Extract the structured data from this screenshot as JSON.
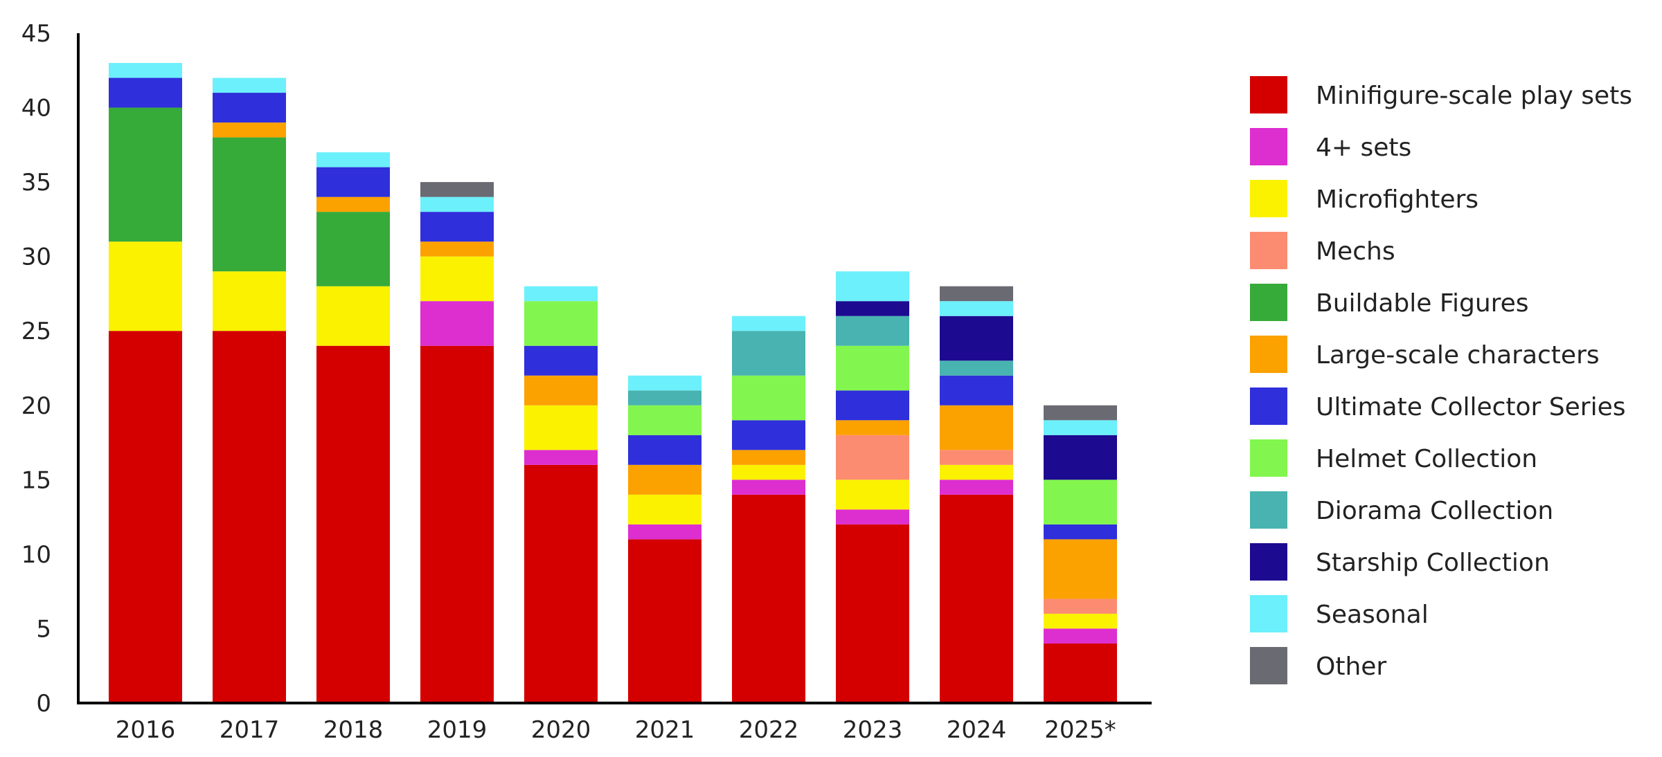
{
  "chart_data": {
    "type": "bar",
    "stacked": true,
    "title": "",
    "xlabel": "",
    "ylabel": "",
    "ylim": [
      0,
      45
    ],
    "yticks": [
      "0",
      "5",
      "10",
      "15",
      "20",
      "25",
      "30",
      "35",
      "40",
      "45"
    ],
    "grid": false,
    "legend_position": "right",
    "categories": [
      "2016",
      "2017",
      "2018",
      "2019",
      "2020",
      "2021",
      "2022",
      "2023",
      "2024",
      "2025*"
    ],
    "series": [
      {
        "name": "Minifigure-scale play sets",
        "color": "#d40000",
        "values": [
          25,
          25,
          24,
          24,
          16,
          11,
          14,
          12,
          14,
          4
        ]
      },
      {
        "name": "4+ sets",
        "color": "#dd2ed0",
        "values": [
          0,
          0,
          0,
          3,
          1,
          1,
          1,
          1,
          1,
          1
        ]
      },
      {
        "name": "Microfighters",
        "color": "#fbf200",
        "values": [
          6,
          4,
          4,
          3,
          3,
          2,
          1,
          2,
          1,
          1
        ]
      },
      {
        "name": "Mechs",
        "color": "#fc8c71",
        "values": [
          0,
          0,
          0,
          0,
          0,
          0,
          0,
          3,
          1,
          1
        ]
      },
      {
        "name": "Buildable Figures",
        "color": "#36ab39",
        "values": [
          9,
          9,
          5,
          0,
          0,
          0,
          0,
          0,
          0,
          0
        ]
      },
      {
        "name": "Large-scale characters",
        "color": "#fba100",
        "values": [
          0,
          1,
          1,
          1,
          2,
          2,
          1,
          1,
          3,
          4
        ]
      },
      {
        "name": "Ultimate Collector Series",
        "color": "#2f2fdb",
        "values": [
          2,
          2,
          2,
          2,
          2,
          2,
          2,
          2,
          2,
          1
        ]
      },
      {
        "name": "Helmet Collection",
        "color": "#82f64e",
        "values": [
          0,
          0,
          0,
          0,
          3,
          2,
          3,
          3,
          0,
          3
        ]
      },
      {
        "name": "Diorama Collection",
        "color": "#48b3b0",
        "values": [
          0,
          0,
          0,
          0,
          0,
          1,
          3,
          2,
          1,
          0
        ]
      },
      {
        "name": "Starship Collection",
        "color": "#1c0a91",
        "values": [
          0,
          0,
          0,
          0,
          0,
          0,
          0,
          1,
          3,
          3
        ]
      },
      {
        "name": "Seasonal",
        "color": "#6cf0fb",
        "values": [
          1,
          1,
          1,
          1,
          1,
          1,
          1,
          2,
          1,
          1
        ]
      },
      {
        "name": "Other",
        "color": "#6a6a72",
        "values": [
          0,
          0,
          0,
          1,
          0,
          0,
          0,
          0,
          1,
          1
        ]
      }
    ]
  }
}
